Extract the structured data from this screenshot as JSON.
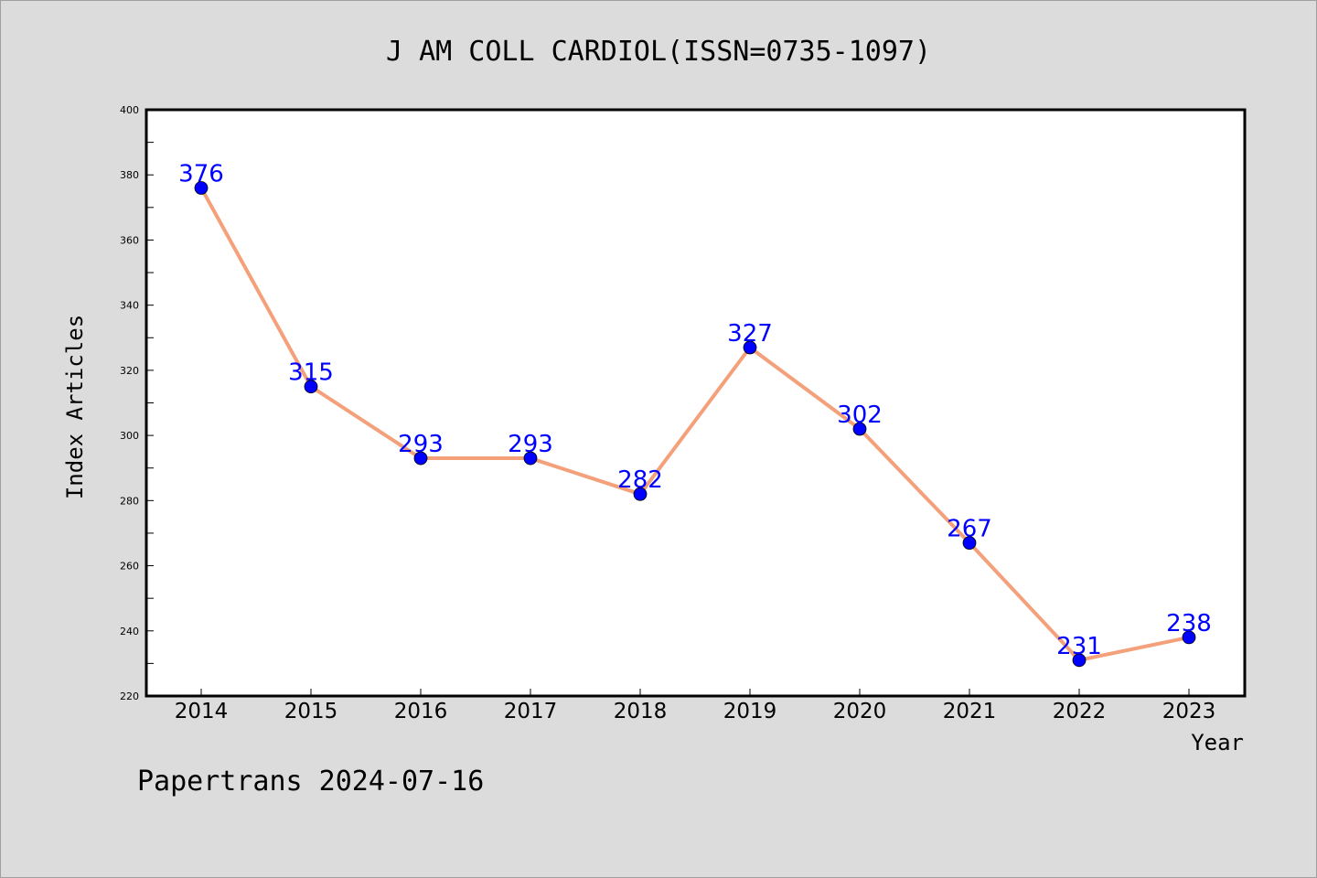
{
  "chart_data": {
    "type": "line",
    "title": "J AM COLL CARDIOL(ISSN=0735-1097)",
    "xlabel": "Year",
    "ylabel": "Index Articles",
    "categories": [
      "2014",
      "2015",
      "2016",
      "2017",
      "2018",
      "2019",
      "2020",
      "2021",
      "2022",
      "2023"
    ],
    "series": [
      {
        "values": [
          376,
          315,
          293,
          293,
          282,
          327,
          302,
          267,
          231,
          238
        ]
      }
    ],
    "data_labels": [
      "376",
      "315",
      "293",
      "293",
      "282",
      "327",
      "302",
      "267",
      "231",
      "238"
    ],
    "ylim": [
      220,
      400
    ],
    "yticks": [
      220,
      240,
      260,
      280,
      300,
      320,
      340,
      360,
      380,
      400
    ],
    "ytick_labels": [
      "220",
      "240",
      "260",
      "280",
      "300",
      "320",
      "340",
      "360",
      "380",
      "400"
    ],
    "grid": false,
    "colors": {
      "line": "#f4a07a",
      "marker": "#0000ff",
      "label": "#0000ff",
      "plot_background": "#ffffff",
      "figure_background": "#dcdcdc"
    }
  },
  "footer": "Papertrans 2024-07-16"
}
